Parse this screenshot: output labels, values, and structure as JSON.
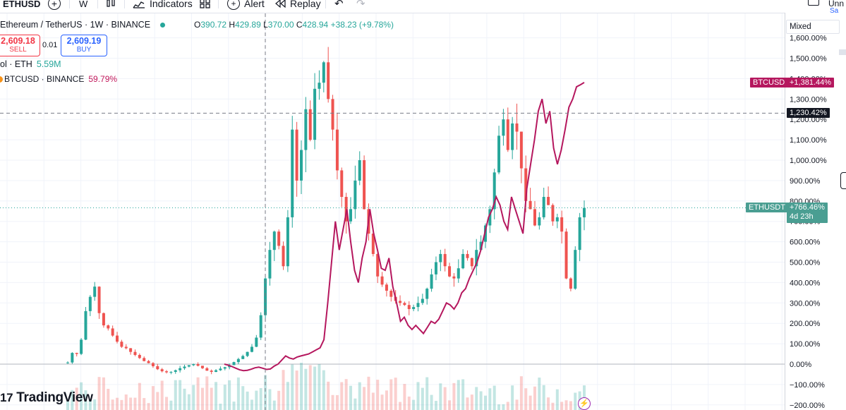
{
  "toolbar": {
    "symbol": "ETHUSD",
    "interval": "W",
    "indicators_label": "Indicators",
    "alert_label": "Alert",
    "replay_label": "Replay",
    "right_partial": "Unn",
    "right_partial2": "Sa"
  },
  "legend": {
    "title": "Ethereum / TetherUS · 1W · BINANCE",
    "o_key": "O",
    "o_val": "390.72",
    "h_key": "H",
    "h_val": "429.89",
    "l_key": "L",
    "l_val": "370.00",
    "c_key": "C",
    "c_val": "428.94",
    "change": "+38.23 (+9.78%)",
    "sell_price": "2,609.18",
    "sell_label": "SELL",
    "spread": "0.01",
    "buy_price": "2,609.19",
    "buy_label": "BUY",
    "volume_label": "ol · ETH",
    "volume_value": "5.59M",
    "compare_label": "BTCUSD · BINANCE",
    "compare_value": "59.79%"
  },
  "scale_mode": "Mixed",
  "branding": "TradingView",
  "colors": {
    "up": "#26a69a",
    "down": "#ef5350",
    "compare_line": "#b5175e",
    "crosshair_label_bg": "#131722",
    "ethusdt_tag": "#4a9e92",
    "btcusd_tag": "#b5175e"
  },
  "chart_data": {
    "type": "line",
    "title": "Ethereum / TetherUS · 1W · BINANCE",
    "y_scale": "percent",
    "ylim": [
      -200,
      1650
    ],
    "y_ticks": [
      1600,
      1500,
      1400,
      1300,
      1200,
      1100,
      1000,
      900,
      800,
      700,
      600,
      500,
      400,
      300,
      200,
      100,
      0,
      -100,
      -200
    ],
    "y_tick_labels": [
      "1,600.00%",
      "1,500.00%",
      "1,400.00%",
      "1,300.00%",
      "1,200.00%",
      "1,100.00%",
      "1,000.00%",
      "900.00%",
      "800.00%",
      "700.00%",
      "600.00%",
      "500.00%",
      "400.00%",
      "300.00%",
      "200.00%",
      "100.00%",
      "0.00%",
      "−100.00%",
      "−200.00%"
    ],
    "crosshair": {
      "label": "1,230.42%",
      "value": 1230.42
    },
    "series": [
      {
        "name": "ETHUSDT",
        "style": "candles",
        "last_label": "+766.46%",
        "last_value": 766.46,
        "countdown": "4d 23h",
        "values": [
          8,
          55,
          50,
          120,
          260,
          330,
          380,
          250,
          190,
          175,
          140,
          110,
          85,
          78,
          60,
          45,
          30,
          15,
          5,
          -10,
          -25,
          -35,
          -40,
          -38,
          -30,
          -20,
          -12,
          -5,
          0,
          -8,
          -20,
          -32,
          -38,
          -30,
          -22,
          -15,
          -5,
          10,
          25,
          40,
          60,
          85,
          130,
          240,
          420,
          560,
          650,
          580,
          480,
          720,
          1150,
          900,
          1050,
          1250,
          1100,
          1350,
          1380,
          1480,
          1300,
          1150,
          950,
          820,
          700,
          760,
          900,
          1000,
          760,
          640,
          540,
          430,
          390,
          360,
          330,
          310,
          300,
          290,
          270,
          280,
          300,
          320,
          370,
          440,
          500,
          540,
          480,
          430,
          420,
          470,
          540,
          520,
          480,
          560,
          600,
          680,
          760,
          940,
          1120,
          1200,
          1050,
          1180,
          1140,
          960,
          800,
          760,
          680,
          720,
          820,
          780,
          700,
          720,
          650,
          420,
          370,
          560,
          720,
          766
        ]
      },
      {
        "name": "BTCUSD",
        "style": "line",
        "last_label": "+1,381.44%",
        "last_value": 1381.44,
        "values": [
          0,
          -5,
          -12,
          -20,
          -28,
          -32,
          -30,
          -25,
          -18,
          -15,
          -20,
          -26,
          -24,
          -10,
          0,
          20,
          40,
          30,
          25,
          35,
          40,
          45,
          50,
          60,
          70,
          80,
          120,
          300,
          500,
          700,
          560,
          660,
          760,
          600,
          460,
          400,
          520,
          600,
          760,
          640,
          560,
          470,
          460,
          520,
          380,
          300,
          210,
          230,
          190,
          170,
          190,
          170,
          150,
          180,
          210,
          200,
          220,
          260,
          300,
          290,
          270,
          300,
          350,
          370,
          420,
          460,
          500,
          560,
          640,
          720,
          760,
          820,
          780,
          700,
          660,
          820,
          760,
          700,
          640,
          860,
          980,
          1100,
          1240,
          1300,
          1180,
          1240,
          1060,
          980,
          1050,
          1150,
          1260,
          1300,
          1360,
          1370,
          1381
        ]
      }
    ],
    "volume": {
      "type": "bar",
      "note": "relative weekly volume bars at bottom"
    }
  }
}
